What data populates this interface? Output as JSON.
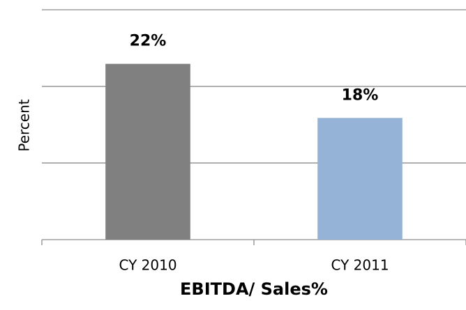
{
  "chart_data": {
    "type": "bar",
    "x_label": "EBITDA/ Sales%",
    "y_label": "Percent",
    "categories": [
      "CY 2010",
      "CY 2011"
    ],
    "values": [
      22,
      18
    ],
    "value_labels": [
      "22%",
      "18%"
    ],
    "colors": [
      "#808080",
      "#95b3d7"
    ],
    "ylim": [
      9,
      26
    ],
    "yticks": [
      9,
      14.67,
      20.33,
      26
    ],
    "grid": true
  }
}
